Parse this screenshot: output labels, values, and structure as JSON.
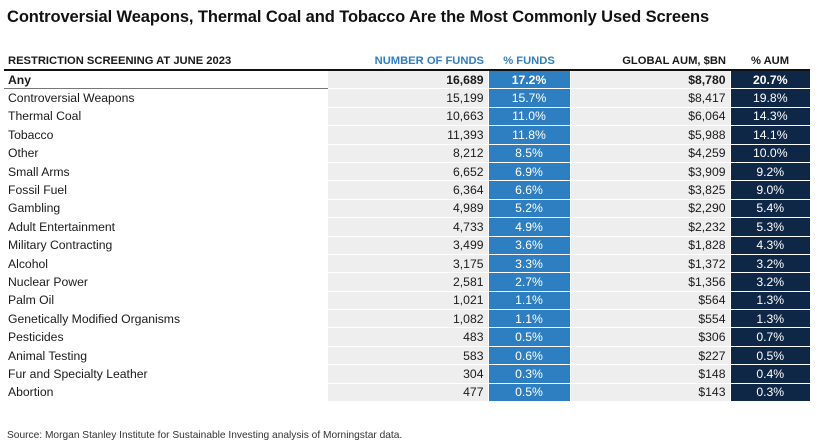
{
  "title": "Controversial Weapons, Thermal Coal and Tobacco Are the Most Commonly Used Screens",
  "source": "Source: Morgan Stanley Institute for Sustainable Investing analysis of Morningstar data.",
  "chart_data": {
    "type": "table",
    "colors": {
      "funds_pct_fill": "#2e7fc2",
      "aum_pct_fill": "#0f2747",
      "value_fill": "#eeeeee",
      "funds_header_text": "#2e7fc2"
    },
    "columns": [
      "RESTRICTION SCREENING AT JUNE 2023",
      "NUMBER OF FUNDS",
      "% FUNDS",
      "GLOBAL AUM, $BN",
      "% AUM"
    ],
    "rows": [
      {
        "screen": "Any",
        "funds": "16,689",
        "funds_pct": "17.2%",
        "aum": "$8,780",
        "aum_pct": "20.7%"
      },
      {
        "screen": "Controversial Weapons",
        "funds": "15,199",
        "funds_pct": "15.7%",
        "aum": "$8,417",
        "aum_pct": "19.8%"
      },
      {
        "screen": "Thermal Coal",
        "funds": "10,663",
        "funds_pct": "11.0%",
        "aum": "$6,064",
        "aum_pct": "14.3%"
      },
      {
        "screen": "Tobacco",
        "funds": "11,393",
        "funds_pct": "11.8%",
        "aum": "$5,988",
        "aum_pct": "14.1%"
      },
      {
        "screen": "Other",
        "funds": "8,212",
        "funds_pct": "8.5%",
        "aum": "$4,259",
        "aum_pct": "10.0%"
      },
      {
        "screen": "Small Arms",
        "funds": "6,652",
        "funds_pct": "6.9%",
        "aum": "$3,909",
        "aum_pct": "9.2%"
      },
      {
        "screen": "Fossil Fuel",
        "funds": "6,364",
        "funds_pct": "6.6%",
        "aum": "$3,825",
        "aum_pct": "9.0%"
      },
      {
        "screen": "Gambling",
        "funds": "4,989",
        "funds_pct": "5.2%",
        "aum": "$2,290",
        "aum_pct": "5.4%"
      },
      {
        "screen": "Adult Entertainment",
        "funds": "4,733",
        "funds_pct": "4.9%",
        "aum": "$2,232",
        "aum_pct": "5.3%"
      },
      {
        "screen": "Military Contracting",
        "funds": "3,499",
        "funds_pct": "3.6%",
        "aum": "$1,828",
        "aum_pct": "4.3%"
      },
      {
        "screen": "Alcohol",
        "funds": "3,175",
        "funds_pct": "3.3%",
        "aum": "$1,372",
        "aum_pct": "3.2%"
      },
      {
        "screen": "Nuclear Power",
        "funds": "2,581",
        "funds_pct": "2.7%",
        "aum": "$1,356",
        "aum_pct": "3.2%"
      },
      {
        "screen": "Palm Oil",
        "funds": "1,021",
        "funds_pct": "1.1%",
        "aum": "$564",
        "aum_pct": "1.3%"
      },
      {
        "screen": "Genetically Modified Organisms",
        "funds": "1,082",
        "funds_pct": "1.1%",
        "aum": "$554",
        "aum_pct": "1.3%"
      },
      {
        "screen": "Pesticides",
        "funds": "483",
        "funds_pct": "0.5%",
        "aum": "$306",
        "aum_pct": "0.7%"
      },
      {
        "screen": "Animal Testing",
        "funds": "583",
        "funds_pct": "0.6%",
        "aum": "$227",
        "aum_pct": "0.5%"
      },
      {
        "screen": "Fur and Specialty Leather",
        "funds": "304",
        "funds_pct": "0.3%",
        "aum": "$148",
        "aum_pct": "0.4%"
      },
      {
        "screen": "Abortion",
        "funds": "477",
        "funds_pct": "0.5%",
        "aum": "$143",
        "aum_pct": "0.3%"
      }
    ]
  }
}
